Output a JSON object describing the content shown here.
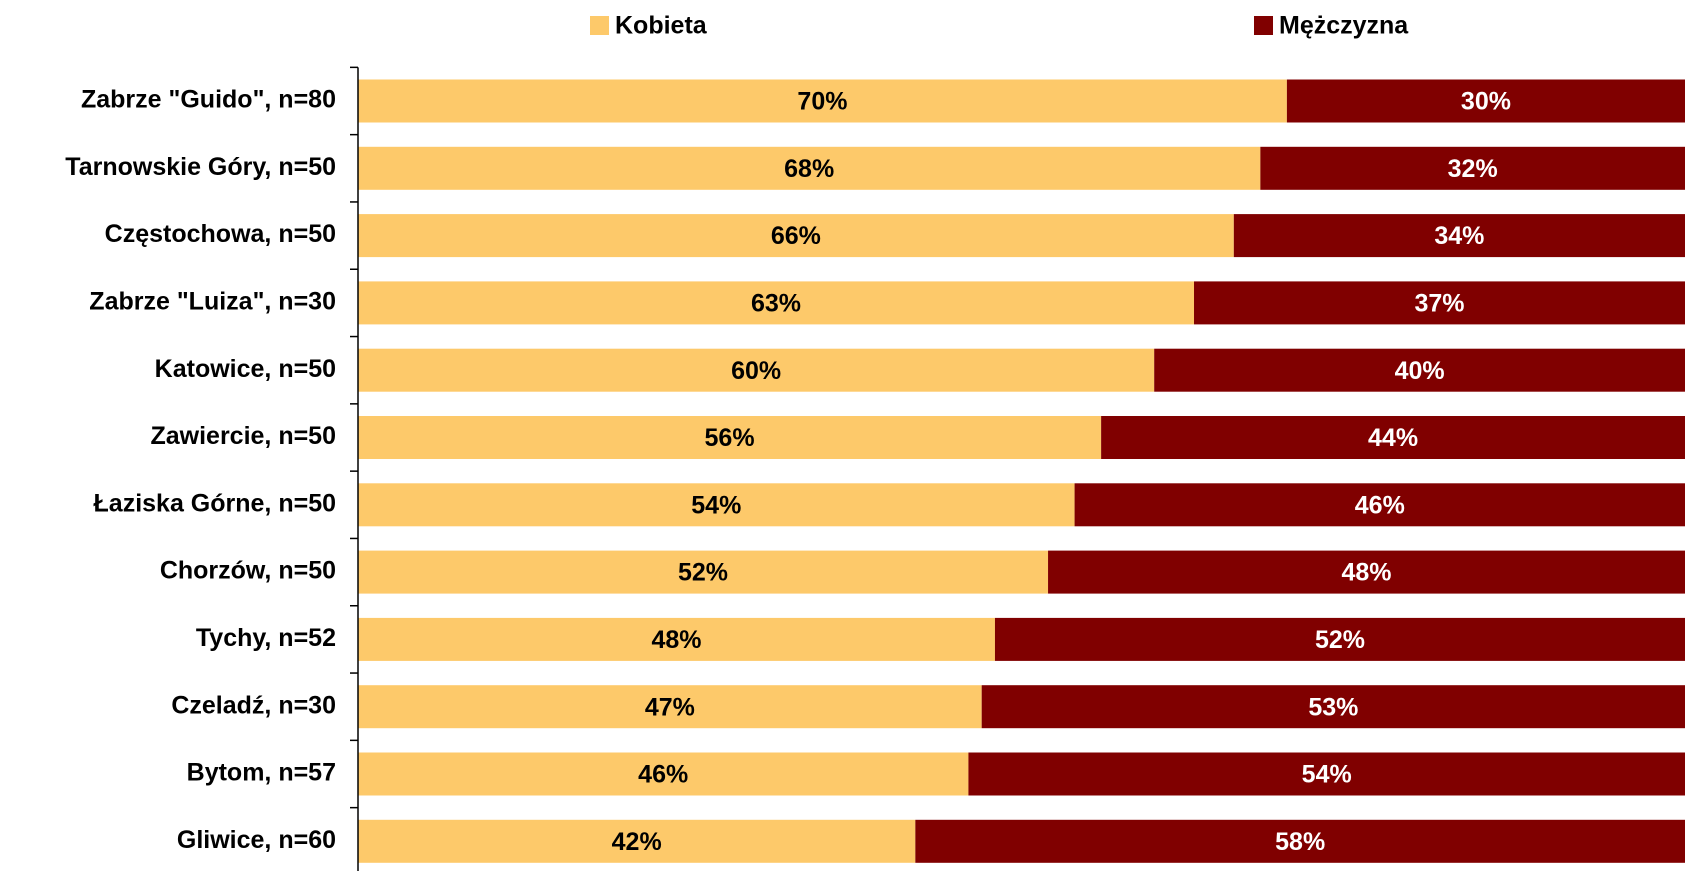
{
  "chart_data": {
    "type": "stacked_bar_horizontal",
    "categories": [
      "Zabrze \"Guido\", n=80",
      "Tarnowskie Góry, n=50",
      "Częstochowa, n=50",
      "Zabrze \"Luiza\", n=30",
      "Katowice, n=50",
      "Zawiercie, n=50",
      "Łaziska Górne, n=50",
      "Chorzów, n=50",
      "Tychy, n=52",
      "Czeladź, n=30",
      "Bytom, n=57",
      "Gliwice, n=60"
    ],
    "series": [
      {
        "name": "Kobieta",
        "color": "#fdc96a",
        "values": [
          70,
          68,
          66,
          63,
          60,
          56,
          54,
          52,
          48,
          47,
          46,
          42
        ],
        "value_labels": [
          "70%",
          "68%",
          "66%",
          "63%",
          "60%",
          "56%",
          "54%",
          "52%",
          "48%",
          "47%",
          "46%",
          "42%"
        ]
      },
      {
        "name": "Mężczyzna",
        "color": "#800000",
        "values": [
          30,
          32,
          34,
          37,
          40,
          44,
          46,
          48,
          52,
          53,
          54,
          58
        ],
        "value_labels": [
          "30%",
          "32%",
          "34%",
          "37%",
          "40%",
          "44%",
          "46%",
          "48%",
          "52%",
          "53%",
          "54%",
          "58%"
        ]
      }
    ],
    "xlim": [
      0,
      100
    ]
  }
}
